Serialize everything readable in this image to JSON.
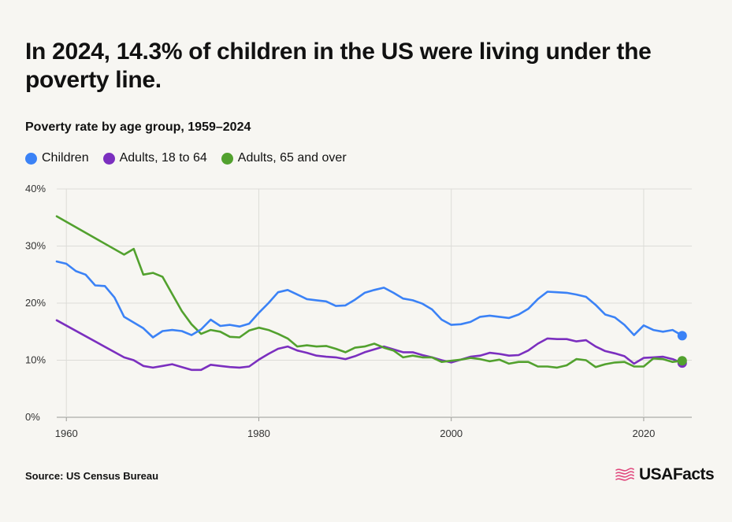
{
  "headline": "In 2024, 14.3% of children in the US were living under the poverty line.",
  "subtitle": "Poverty rate by age group, 1959–2024",
  "source": "Source: US Census Bureau",
  "brand": "USAFacts",
  "colors": {
    "children": "#3b82f6",
    "adults": "#7b2fbf",
    "seniors": "#52a12e",
    "grid": "#dcdcd8",
    "logo": "#e0457b"
  },
  "chart_data": {
    "type": "line",
    "title": "Poverty rate by age group, 1959–2024",
    "xlim": [
      1959,
      2025
    ],
    "ylim": [
      0,
      40
    ],
    "x_ticks": [
      1960,
      1980,
      2000,
      2020
    ],
    "x_tick_labels": [
      "1960",
      "1980",
      "2000",
      "2020"
    ],
    "y_ticks": [
      0,
      10,
      20,
      30,
      40
    ],
    "y_tick_labels": [
      "0%",
      "10%",
      "20%",
      "30%",
      "40%"
    ],
    "grid": true,
    "legend_position": "top-left",
    "series": [
      {
        "name": "Children",
        "color": "#3b82f6",
        "points": [
          [
            1959,
            27.3
          ],
          [
            1960,
            26.9
          ],
          [
            1961,
            25.6
          ],
          [
            1962,
            25.0
          ],
          [
            1963,
            23.1
          ],
          [
            1964,
            23.0
          ],
          [
            1965,
            21.0
          ],
          [
            1966,
            17.6
          ],
          [
            1967,
            16.6
          ],
          [
            1968,
            15.6
          ],
          [
            1969,
            14.0
          ],
          [
            1970,
            15.1
          ],
          [
            1971,
            15.3
          ],
          [
            1972,
            15.1
          ],
          [
            1973,
            14.4
          ],
          [
            1974,
            15.4
          ],
          [
            1975,
            17.1
          ],
          [
            1976,
            16.0
          ],
          [
            1977,
            16.2
          ],
          [
            1978,
            15.9
          ],
          [
            1979,
            16.4
          ],
          [
            1980,
            18.3
          ],
          [
            1981,
            20.0
          ],
          [
            1982,
            21.9
          ],
          [
            1983,
            22.3
          ],
          [
            1984,
            21.5
          ],
          [
            1985,
            20.7
          ],
          [
            1986,
            20.5
          ],
          [
            1987,
            20.3
          ],
          [
            1988,
            19.5
          ],
          [
            1989,
            19.6
          ],
          [
            1990,
            20.6
          ],
          [
            1991,
            21.8
          ],
          [
            1992,
            22.3
          ],
          [
            1993,
            22.7
          ],
          [
            1994,
            21.8
          ],
          [
            1995,
            20.8
          ],
          [
            1996,
            20.5
          ],
          [
            1997,
            19.9
          ],
          [
            1998,
            18.9
          ],
          [
            1999,
            17.1
          ],
          [
            2000,
            16.2
          ],
          [
            2001,
            16.3
          ],
          [
            2002,
            16.7
          ],
          [
            2003,
            17.6
          ],
          [
            2004,
            17.8
          ],
          [
            2005,
            17.6
          ],
          [
            2006,
            17.4
          ],
          [
            2007,
            18.0
          ],
          [
            2008,
            19.0
          ],
          [
            2009,
            20.7
          ],
          [
            2010,
            22.0
          ],
          [
            2011,
            21.9
          ],
          [
            2012,
            21.8
          ],
          [
            2013,
            21.5
          ],
          [
            2014,
            21.1
          ],
          [
            2015,
            19.7
          ],
          [
            2016,
            18.0
          ],
          [
            2017,
            17.5
          ],
          [
            2018,
            16.2
          ],
          [
            2019,
            14.4
          ],
          [
            2020,
            16.1
          ],
          [
            2021,
            15.3
          ],
          [
            2022,
            15.0
          ],
          [
            2023,
            15.3
          ],
          [
            2024,
            14.3
          ]
        ]
      },
      {
        "name": "Adults, 18 to 64",
        "color": "#7b2fbf",
        "points": [
          [
            1959,
            17.0
          ],
          [
            1966,
            10.5
          ],
          [
            1967,
            10.0
          ],
          [
            1968,
            9.0
          ],
          [
            1969,
            8.7
          ],
          [
            1970,
            9.0
          ],
          [
            1971,
            9.3
          ],
          [
            1972,
            8.8
          ],
          [
            1973,
            8.3
          ],
          [
            1974,
            8.3
          ],
          [
            1975,
            9.2
          ],
          [
            1976,
            9.0
          ],
          [
            1977,
            8.8
          ],
          [
            1978,
            8.7
          ],
          [
            1979,
            8.9
          ],
          [
            1980,
            10.1
          ],
          [
            1981,
            11.1
          ],
          [
            1982,
            12.0
          ],
          [
            1983,
            12.4
          ],
          [
            1984,
            11.7
          ],
          [
            1985,
            11.3
          ],
          [
            1986,
            10.8
          ],
          [
            1987,
            10.6
          ],
          [
            1988,
            10.5
          ],
          [
            1989,
            10.2
          ],
          [
            1990,
            10.7
          ],
          [
            1991,
            11.4
          ],
          [
            1992,
            11.9
          ],
          [
            1993,
            12.4
          ],
          [
            1994,
            11.9
          ],
          [
            1995,
            11.4
          ],
          [
            1996,
            11.4
          ],
          [
            1997,
            10.9
          ],
          [
            1998,
            10.5
          ],
          [
            1999,
            10.0
          ],
          [
            2000,
            9.6
          ],
          [
            2001,
            10.1
          ],
          [
            2002,
            10.6
          ],
          [
            2003,
            10.8
          ],
          [
            2004,
            11.3
          ],
          [
            2005,
            11.1
          ],
          [
            2006,
            10.8
          ],
          [
            2007,
            10.9
          ],
          [
            2008,
            11.7
          ],
          [
            2009,
            12.9
          ],
          [
            2010,
            13.8
          ],
          [
            2011,
            13.7
          ],
          [
            2012,
            13.7
          ],
          [
            2013,
            13.3
          ],
          [
            2014,
            13.5
          ],
          [
            2015,
            12.4
          ],
          [
            2016,
            11.6
          ],
          [
            2017,
            11.2
          ],
          [
            2018,
            10.7
          ],
          [
            2019,
            9.4
          ],
          [
            2020,
            10.4
          ],
          [
            2021,
            10.5
          ],
          [
            2022,
            10.6
          ],
          [
            2023,
            10.2
          ],
          [
            2024,
            9.5
          ]
        ]
      },
      {
        "name": "Adults, 65 and over",
        "color": "#52a12e",
        "points": [
          [
            1959,
            35.2
          ],
          [
            1966,
            28.5
          ],
          [
            1967,
            29.5
          ],
          [
            1968,
            25.0
          ],
          [
            1969,
            25.3
          ],
          [
            1970,
            24.6
          ],
          [
            1971,
            21.6
          ],
          [
            1972,
            18.6
          ],
          [
            1973,
            16.3
          ],
          [
            1974,
            14.6
          ],
          [
            1975,
            15.3
          ],
          [
            1976,
            15.0
          ],
          [
            1977,
            14.1
          ],
          [
            1978,
            14.0
          ],
          [
            1979,
            15.2
          ],
          [
            1980,
            15.7
          ],
          [
            1981,
            15.3
          ],
          [
            1982,
            14.6
          ],
          [
            1983,
            13.8
          ],
          [
            1984,
            12.4
          ],
          [
            1985,
            12.6
          ],
          [
            1986,
            12.4
          ],
          [
            1987,
            12.5
          ],
          [
            1988,
            12.0
          ],
          [
            1989,
            11.4
          ],
          [
            1990,
            12.2
          ],
          [
            1991,
            12.4
          ],
          [
            1992,
            12.9
          ],
          [
            1993,
            12.2
          ],
          [
            1994,
            11.7
          ],
          [
            1995,
            10.5
          ],
          [
            1996,
            10.8
          ],
          [
            1997,
            10.5
          ],
          [
            1998,
            10.5
          ],
          [
            1999,
            9.7
          ],
          [
            2000,
            9.9
          ],
          [
            2001,
            10.1
          ],
          [
            2002,
            10.4
          ],
          [
            2003,
            10.2
          ],
          [
            2004,
            9.8
          ],
          [
            2005,
            10.1
          ],
          [
            2006,
            9.4
          ],
          [
            2007,
            9.7
          ],
          [
            2008,
            9.7
          ],
          [
            2009,
            8.9
          ],
          [
            2010,
            8.9
          ],
          [
            2011,
            8.7
          ],
          [
            2012,
            9.1
          ],
          [
            2013,
            10.2
          ],
          [
            2014,
            10.0
          ],
          [
            2015,
            8.8
          ],
          [
            2016,
            9.3
          ],
          [
            2017,
            9.6
          ],
          [
            2018,
            9.7
          ],
          [
            2019,
            8.9
          ],
          [
            2020,
            8.9
          ],
          [
            2021,
            10.3
          ],
          [
            2022,
            10.2
          ],
          [
            2023,
            9.7
          ],
          [
            2024,
            9.9
          ]
        ]
      }
    ]
  }
}
